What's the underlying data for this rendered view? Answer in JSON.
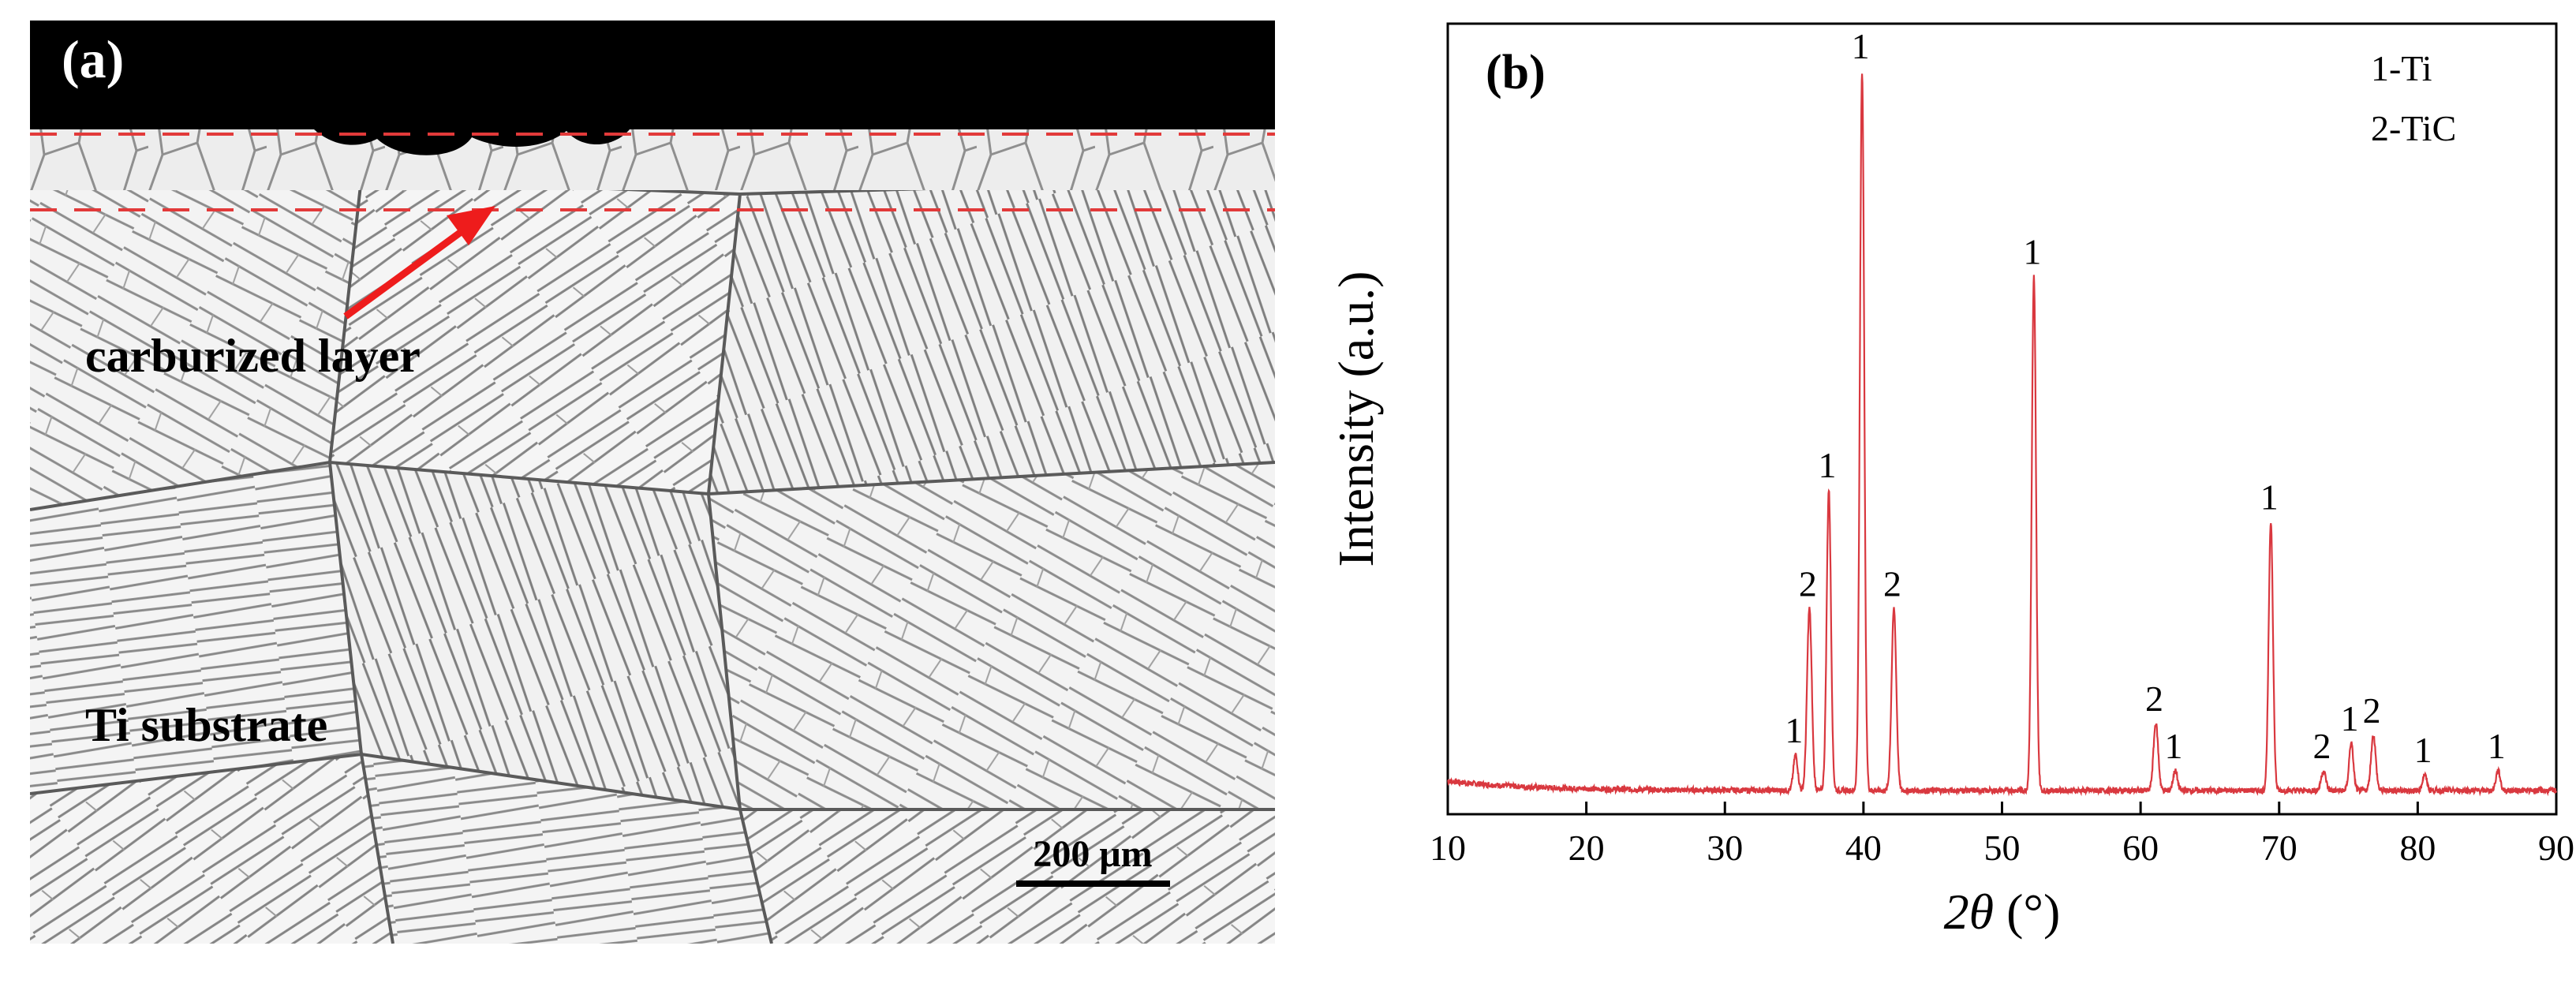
{
  "panel_a": {
    "label": "(a)",
    "annotation": "carburized layer",
    "substrate_label": "Ti substrate",
    "scale_bar_label": "200 μm"
  },
  "chart_data": {
    "type": "line",
    "panel_label": "(b)",
    "xlabel_var": "2θ",
    "xlabel_unit": " (°)",
    "ylabel": "Intensity (a.u.)",
    "xlim": [
      10,
      90
    ],
    "xticks": [
      10,
      20,
      30,
      40,
      50,
      60,
      70,
      80,
      90
    ],
    "ylim": [
      0,
      100
    ],
    "show_y_ticks": false,
    "grid": false,
    "line_color": "#d9383f",
    "baseline": 3.0,
    "legend": {
      "position": "top-right",
      "entries": [
        "1-Ti",
        "2-TiC"
      ]
    },
    "peaks": [
      {
        "x": 35.1,
        "y": 7.5,
        "phase": "1"
      },
      {
        "x": 36.1,
        "y": 26.0,
        "phase": "2"
      },
      {
        "x": 37.5,
        "y": 41.0,
        "phase": "1"
      },
      {
        "x": 39.9,
        "y": 94.0,
        "phase": "1"
      },
      {
        "x": 42.2,
        "y": 26.0,
        "phase": "2"
      },
      {
        "x": 52.3,
        "y": 68.0,
        "phase": "1"
      },
      {
        "x": 61.1,
        "y": 11.5,
        "phase": "2"
      },
      {
        "x": 62.5,
        "y": 5.5,
        "phase": "1"
      },
      {
        "x": 69.4,
        "y": 37.0,
        "phase": "1"
      },
      {
        "x": 73.2,
        "y": 5.5,
        "phase": "2"
      },
      {
        "x": 75.2,
        "y": 9.0,
        "phase": "1"
      },
      {
        "x": 76.8,
        "y": 10.0,
        "phase": "2"
      },
      {
        "x": 80.5,
        "y": 5.0,
        "phase": "1"
      },
      {
        "x": 85.8,
        "y": 5.5,
        "phase": "1"
      }
    ]
  }
}
